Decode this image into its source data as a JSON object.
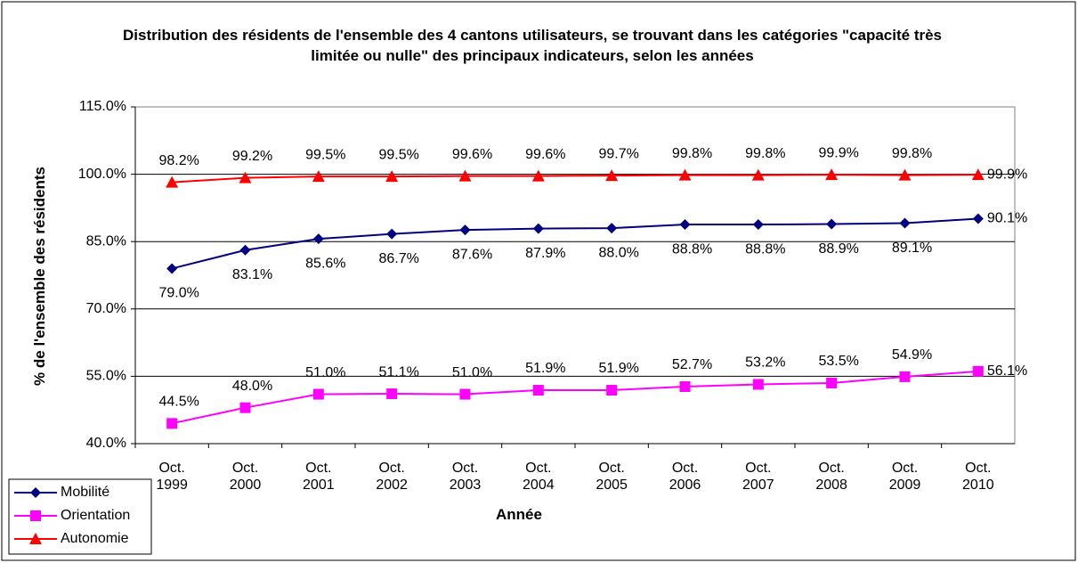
{
  "chart_data": {
    "type": "line",
    "title": "Distribution des résidents de l'ensemble des 4 cantons utilisateurs, se trouvant dans les catégories \"capacité très limitée ou nulle\" des principaux indicateurs, selon les années",
    "xlabel": "Année",
    "ylabel": "% de l'ensemble des résidents",
    "categories": [
      "Oct. 1999",
      "Oct. 2000",
      "Oct. 2001",
      "Oct. 2002",
      "Oct. 2003",
      "Oct. 2004",
      "Oct. 2005",
      "Oct. 2006",
      "Oct. 2007",
      "Oct. 2008",
      "Oct. 2009",
      "Oct. 2010"
    ],
    "ylim": [
      40,
      115
    ],
    "yticks": [
      {
        "value": 40,
        "label": "40.0%"
      },
      {
        "value": 55,
        "label": "55.0%"
      },
      {
        "value": 70,
        "label": "70.0%"
      },
      {
        "value": 85,
        "label": "85.0%"
      },
      {
        "value": 100,
        "label": "100.0%"
      },
      {
        "value": 115,
        "label": "115.0%"
      }
    ],
    "grid": true,
    "legend": "bottom-left",
    "series": [
      {
        "name": "Mobilité",
        "color": "#000080",
        "marker": "diamond",
        "values": [
          79.0,
          83.1,
          85.6,
          86.7,
          87.6,
          87.9,
          88.0,
          88.8,
          88.8,
          88.9,
          89.1,
          90.1
        ],
        "value_labels": [
          "79.0%",
          "83.1%",
          "85.6%",
          "86.7%",
          "87.6%",
          "87.9%",
          "88.0%",
          "88.8%",
          "88.8%",
          "88.9%",
          "89.1%",
          "90.1%"
        ]
      },
      {
        "name": "Orientation",
        "color": "#ff00ff",
        "marker": "square",
        "values": [
          44.5,
          48.0,
          51.0,
          51.1,
          51.0,
          51.9,
          51.9,
          52.7,
          53.2,
          53.5,
          54.9,
          56.1
        ],
        "value_labels": [
          "44.5%",
          "48.0%",
          "51.0%",
          "51.1%",
          "51.0%",
          "51.9%",
          "51.9%",
          "52.7%",
          "53.2%",
          "53.5%",
          "54.9%",
          "56.1%"
        ]
      },
      {
        "name": "Autonomie",
        "color": "#ff0000",
        "marker": "triangle",
        "values": [
          98.2,
          99.2,
          99.5,
          99.5,
          99.6,
          99.6,
          99.7,
          99.8,
          99.8,
          99.9,
          99.8,
          99.9
        ],
        "value_labels": [
          "98.2%",
          "99.2%",
          "99.5%",
          "99.5%",
          "99.6%",
          "99.6%",
          "99.7%",
          "99.8%",
          "99.8%",
          "99.9%",
          "99.8%",
          "99.9%"
        ]
      }
    ]
  }
}
